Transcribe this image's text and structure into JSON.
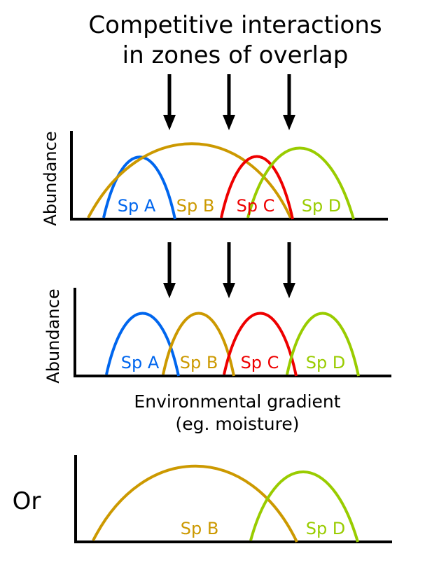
{
  "title": {
    "line1": "Competitive interactions",
    "line2": "in zones of overlap"
  },
  "colors": {
    "sp_a": "#0066ee",
    "sp_b": "#cc9900",
    "sp_c": "#ee0000",
    "sp_d": "#99cc00",
    "axis": "#000000"
  },
  "species": {
    "a": "Sp A",
    "b": "Sp B",
    "c": "Sp C",
    "d": "Sp D"
  },
  "ylabel": "Abundance",
  "gradient": {
    "line1": "Environmental gradient",
    "line2": "(eg. moisture)"
  },
  "or_label": "Or"
}
